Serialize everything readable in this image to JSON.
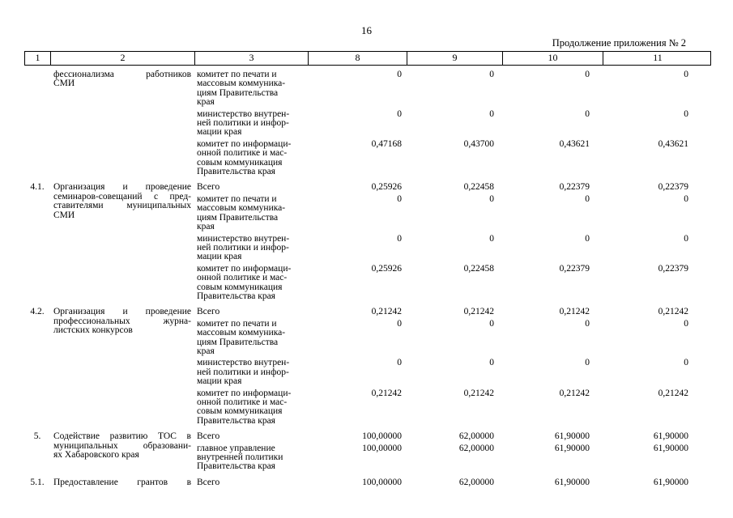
{
  "page": {
    "number": "16",
    "caption": "Продолжение приложения № 2"
  },
  "table": {
    "headers": [
      "1",
      "2",
      "3",
      "8",
      "9",
      "10",
      "11"
    ],
    "groups": [
      {
        "num": "",
        "activity": "фессионализма работников\nСМИ",
        "rows": [
          {
            "executor": "комитет по печати и\nмассовым коммуника-\nциям Правительства\nкрая",
            "values": [
              "0",
              "0",
              "0",
              "0"
            ]
          },
          {
            "executor": "министерство внутрен-\nней политики и инфор-\nмации края",
            "values": [
              "0",
              "0",
              "0",
              "0"
            ]
          },
          {
            "executor": "комитет по информаци-\nонной политике и мас-\nсовым коммуникация\nПравительства края",
            "values": [
              "0,47168",
              "0,43700",
              "0,43621",
              "0,43621"
            ]
          }
        ]
      },
      {
        "num": "4.1.",
        "activity": "Организация и проведение\nсеминаров-совещаний с пред-\nставителями муниципальных\nСМИ",
        "rows": [
          {
            "executor": "Всего",
            "values": [
              "0,25926",
              "0,22458",
              "0,22379",
              "0,22379"
            ]
          },
          {
            "executor": "комитет по печати и\nмассовым коммуника-\nциям Правительства\nкрая",
            "values": [
              "0",
              "0",
              "0",
              "0"
            ]
          },
          {
            "executor": "министерство внутрен-\nней политики и инфор-\nмации края",
            "values": [
              "0",
              "0",
              "0",
              "0"
            ]
          },
          {
            "executor": "комитет по информаци-\nонной политике и мас-\nсовым коммуникация\nПравительства края",
            "values": [
              "0,25926",
              "0,22458",
              "0,22379",
              "0,22379"
            ]
          }
        ]
      },
      {
        "num": "4.2.",
        "activity": "Организация и проведение\nпрофессиональных журна-\nлистских конкурсов",
        "rows": [
          {
            "executor": "Всего",
            "values": [
              "0,21242",
              "0,21242",
              "0,21242",
              "0,21242"
            ]
          },
          {
            "executor": "комитет по печати и\nмассовым коммуника-\nциям Правительства\nкрая",
            "values": [
              "0",
              "0",
              "0",
              "0"
            ]
          },
          {
            "executor": "министерство внутрен-\nней политики и инфор-\nмации края",
            "values": [
              "0",
              "0",
              "0",
              "0"
            ]
          },
          {
            "executor": "комитет по информаци-\nонной политике и мас-\nсовым коммуникация\nПравительства края",
            "values": [
              "0,21242",
              "0,21242",
              "0,21242",
              "0,21242"
            ]
          }
        ]
      },
      {
        "num": "5.",
        "activity": "Содействие развитию ТОС в\nмуниципальных образовани-\nях Хабаровского края",
        "rows": [
          {
            "executor": "Всего",
            "values": [
              "100,00000",
              "62,00000",
              "61,90000",
              "61,90000"
            ]
          },
          {
            "executor": "главное управление\nвнутренней политики\nПравительства края",
            "values": [
              "100,00000",
              "62,00000",
              "61,90000",
              "61,90000"
            ]
          }
        ]
      },
      {
        "num": "5.1.",
        "activity": "Предоставление грантов в",
        "justify_all": true,
        "rows": [
          {
            "executor": "Всего",
            "values": [
              "100,00000",
              "62,00000",
              "61,90000",
              "61,90000"
            ]
          }
        ]
      }
    ]
  }
}
